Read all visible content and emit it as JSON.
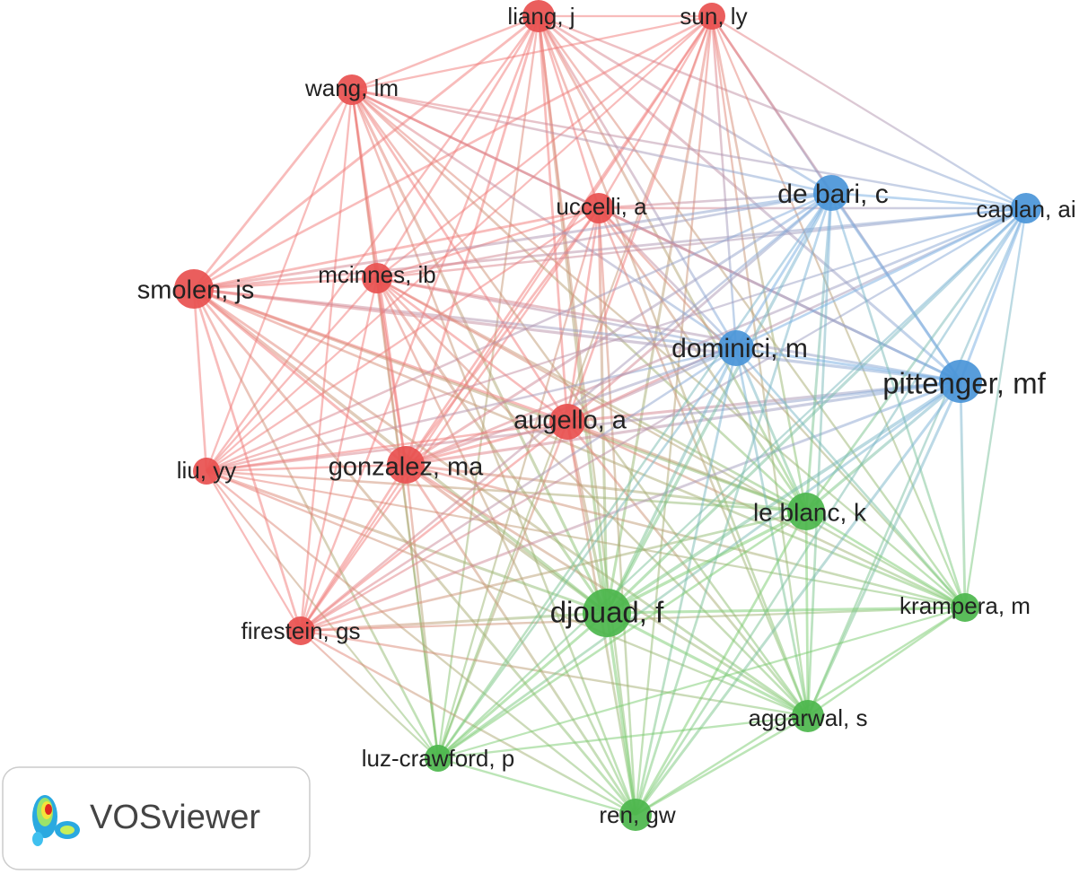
{
  "nodes": [
    {
      "label": "liang, j"
    },
    {
      "label": "sun, ly"
    },
    {
      "label": "wang, lm"
    },
    {
      "label": "uccelli, a"
    },
    {
      "label": "smolen, js"
    },
    {
      "label": "mcinnes, ib"
    },
    {
      "label": "augello, a"
    },
    {
      "label": "liu, yy"
    },
    {
      "label": "gonzalez, ma"
    },
    {
      "label": "firestein, gs"
    },
    {
      "label": "de bari, c"
    },
    {
      "label": "caplan, ai"
    },
    {
      "label": "dominici, m"
    },
    {
      "label": "pittenger, mf"
    },
    {
      "label": "le blanc, k"
    },
    {
      "label": "djouad, f"
    },
    {
      "label": "krampera, m"
    },
    {
      "label": "aggarwal, s"
    },
    {
      "label": "luz-crawford, p"
    },
    {
      "label": "ren, gw"
    }
  ],
  "logo": {
    "label": "VOSviewer"
  }
}
